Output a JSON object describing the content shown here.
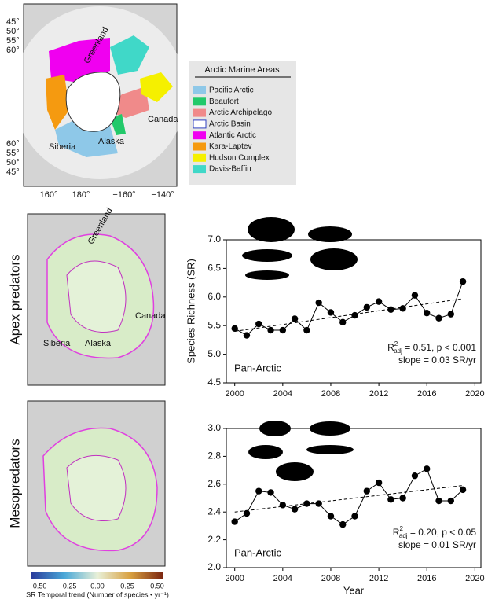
{
  "chart_data": [
    {
      "type": "line",
      "ylabel": "Species Richness (SR)",
      "region_label": "Pan-Arctic",
      "annotation": {
        "r": "R",
        "sup": "2",
        "sub": "adj",
        "stat": " = 0.51, p < 0.001",
        "slope": "slope = 0.03 SR/yr"
      },
      "x": [
        2000,
        2001,
        2002,
        2003,
        2004,
        2005,
        2006,
        2007,
        2008,
        2009,
        2010,
        2011,
        2012,
        2013,
        2014,
        2015,
        2016,
        2017,
        2018,
        2019
      ],
      "values": [
        5.45,
        5.33,
        5.53,
        5.42,
        5.42,
        5.62,
        5.42,
        5.9,
        5.73,
        5.56,
        5.68,
        5.82,
        5.92,
        5.78,
        5.8,
        6.03,
        5.72,
        5.63,
        5.7,
        6.27
      ],
      "color": "#000000",
      "trend": {
        "x": [
          2000,
          2019
        ],
        "values": [
          5.4,
          5.97
        ]
      },
      "xlim": [
        1999.3,
        2020.5
      ],
      "xticks": [
        2000,
        2004,
        2008,
        2012,
        2016,
        2020
      ],
      "ylim": [
        4.5,
        7.0
      ],
      "yticks": [
        4.5,
        {
          "value": 5,
          "label": "5.0"
        },
        5.5,
        {
          "value": 6,
          "label": "6.0"
        },
        6.5,
        {
          "value": 7,
          "label": "7.0"
        }
      ]
    },
    {
      "type": "line",
      "xlabel": "Year",
      "region_label": "Pan-Arctic",
      "annotation": {
        "r": "R",
        "sup": "2",
        "sub": "adj",
        "stat": " = 0.20, p < 0.05",
        "slope": "slope = 0.01 SR/yr"
      },
      "x": [
        2000,
        2001,
        2002,
        2003,
        2004,
        2005,
        2006,
        2007,
        2008,
        2009,
        2010,
        2011,
        2012,
        2013,
        2014,
        2015,
        2016,
        2017,
        2018,
        2019
      ],
      "values": [
        2.33,
        2.39,
        2.55,
        2.54,
        2.45,
        2.42,
        2.46,
        2.46,
        2.37,
        2.31,
        2.37,
        2.55,
        2.61,
        2.49,
        2.5,
        2.66,
        2.71,
        2.48,
        2.48,
        2.56
      ],
      "color": "#000000",
      "trend": {
        "x": [
          2000,
          2019
        ],
        "values": [
          2.4,
          2.59
        ]
      },
      "xlim": [
        1999.3,
        2020.5
      ],
      "xticks": [
        2000,
        2004,
        2008,
        2012,
        2016,
        2020
      ],
      "ylim": [
        2.0,
        3.0
      ],
      "yticks": [
        {
          "value": 2,
          "label": "2.0"
        },
        2.2,
        2.4,
        2.6,
        2.8,
        {
          "value": 3,
          "label": "3.0"
        }
      ]
    }
  ],
  "map": {
    "lat_top": [
      "45°",
      "50°",
      "55°",
      "60°"
    ],
    "lat_bottom": [
      "60°",
      "55°",
      "50°",
      "45°"
    ],
    "lon": [
      "160°",
      "180°",
      "−160°",
      "−140°"
    ],
    "places": [
      "Greenland",
      "Canada",
      "Siberia",
      "Alaska"
    ]
  },
  "legend": {
    "title": "Arctic Marine Areas",
    "items": [
      {
        "name": "Pacific Arctic",
        "color": "#8ec8e8"
      },
      {
        "name": "Beaufort",
        "color": "#22c96a"
      },
      {
        "name": "Arctic Archipelago",
        "color": "#f08a8a"
      },
      {
        "name": "Arctic Basin",
        "color": "#ffffff"
      },
      {
        "name": "Atlantic Arctic",
        "color": "#f000f0"
      },
      {
        "name": "Kara-Laptev",
        "color": "#f59a10"
      },
      {
        "name": "Hudson Complex",
        "color": "#f5f000"
      },
      {
        "name": "Davis-Baffin",
        "color": "#40d8c8"
      }
    ]
  },
  "panels": {
    "apex": "Apex predators",
    "meso": "Mesopredators",
    "apex_places": [
      "Greenland",
      "Canada",
      "Siberia",
      "Alaska"
    ],
    "meso_places": []
  },
  "colorbar": {
    "ticks": [
      "−0.50",
      "−0.25",
      "0.00",
      "0.25",
      "0.50"
    ],
    "label": "SR Temporal trend (Number of species • yr⁻¹)"
  }
}
